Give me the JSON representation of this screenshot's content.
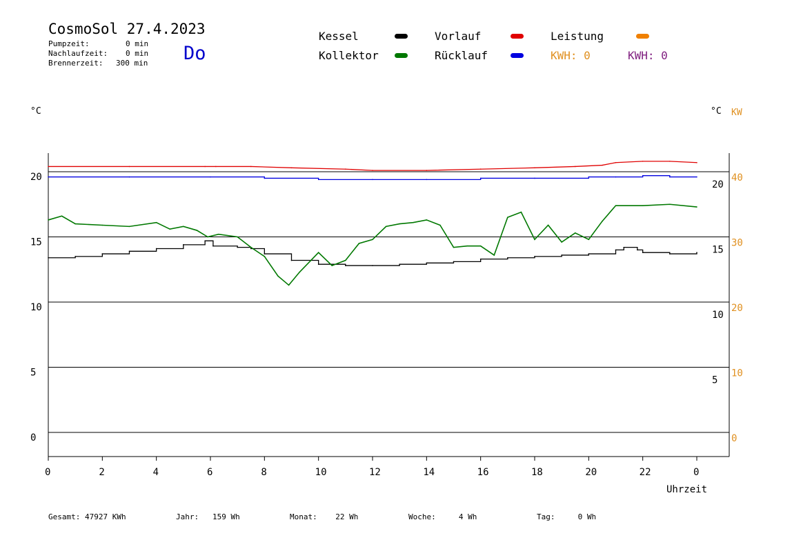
{
  "header": {
    "title": "CosmoSol 27.4.2023",
    "info": [
      {
        "label": "Pumpzeit:",
        "value": "0 min"
      },
      {
        "label": "Nachlaufzeit:",
        "value": "0 min"
      },
      {
        "label": "Brennerzeit:",
        "value": "300 min"
      }
    ],
    "day": "Do"
  },
  "legend": {
    "items": [
      {
        "name": "Kessel",
        "color": "#000000"
      },
      {
        "name": "Vorlauf",
        "color": "#e00000"
      },
      {
        "name": "Leistung",
        "color": "#f08000"
      },
      {
        "name": "Kollektor",
        "color": "#007800"
      },
      {
        "name": "Rücklauf",
        "color": "#0000e0"
      }
    ],
    "kwh1": "KWH: 0",
    "kwh1_color": "#e09020",
    "kwh2": "KWH: 0",
    "kwh2_color": "#802080"
  },
  "units": {
    "left": "°C",
    "right": "°C",
    "right2": "KW"
  },
  "footer": [
    {
      "label": "Gesamt:",
      "value": "47927 KWh"
    },
    {
      "label": "Jahr:",
      "value": "159 Wh"
    },
    {
      "label": "Monat:",
      "value": "22 Wh"
    },
    {
      "label": "Woche:",
      "value": "4 Wh"
    },
    {
      "label": "Tag:",
      "value": "0 Wh"
    }
  ],
  "chart_data": {
    "type": "line",
    "xlabel": "Uhrzeit",
    "x_ticks": [
      "0",
      "2",
      "4",
      "6",
      "8",
      "10",
      "12",
      "14",
      "16",
      "18",
      "20",
      "22",
      "0"
    ],
    "xlim": [
      0,
      24
    ],
    "ylim": [
      0,
      20
    ],
    "y_ticks_left": [
      0,
      5,
      10,
      15,
      20
    ],
    "y_ticks_right": [
      5,
      10,
      15,
      20
    ],
    "y_ticks_kw": [
      0,
      10,
      20,
      30,
      40
    ],
    "kw_color": "#e09020",
    "grid": "horizontal",
    "series": [
      {
        "name": "Vorlauf",
        "color": "#e00000",
        "x": [
          0,
          3,
          5.8,
          6.2,
          7.5,
          9,
          11,
          12,
          14,
          16,
          18,
          19.5,
          20.5,
          21,
          22,
          23,
          24
        ],
        "y": [
          20.4,
          20.4,
          20.4,
          20.4,
          20.4,
          20.3,
          20.2,
          20.1,
          20.1,
          20.2,
          20.3,
          20.4,
          20.5,
          20.7,
          20.8,
          20.8,
          20.7
        ]
      },
      {
        "name": "Rücklauf",
        "color": "#0000e0",
        "x": [
          0,
          3,
          6,
          8,
          10,
          12,
          14,
          16,
          18,
          20,
          21,
          22,
          23,
          24
        ],
        "y": [
          19.6,
          19.6,
          19.6,
          19.5,
          19.4,
          19.4,
          19.4,
          19.5,
          19.5,
          19.6,
          19.6,
          19.7,
          19.6,
          19.6
        ],
        "interpolate": "step"
      },
      {
        "name": "Kessel",
        "color": "#000000",
        "x": [
          0,
          1,
          2,
          3,
          4,
          5,
          5.8,
          6.1,
          7,
          7.5,
          8,
          9,
          10,
          11,
          12,
          13,
          14,
          15,
          16,
          17,
          18,
          19,
          20,
          21,
          21.3,
          21.8,
          22,
          23,
          24
        ],
        "y": [
          13.4,
          13.5,
          13.7,
          13.9,
          14.1,
          14.4,
          14.7,
          14.3,
          14.2,
          14.1,
          13.7,
          13.2,
          12.9,
          12.8,
          12.8,
          12.9,
          13.0,
          13.1,
          13.3,
          13.4,
          13.5,
          13.6,
          13.7,
          14.0,
          14.2,
          14.0,
          13.8,
          13.7,
          13.8
        ],
        "interpolate": "step"
      },
      {
        "name": "Kollektor",
        "color": "#007800",
        "x": [
          0,
          0.5,
          1,
          2,
          3,
          4,
          4.5,
          5,
          5.5,
          5.9,
          6.3,
          7,
          7.5,
          8,
          8.5,
          8.9,
          9.3,
          10,
          10.5,
          11,
          11.5,
          12,
          12.5,
          13,
          13.5,
          14,
          14.5,
          15,
          15.5,
          16,
          16.5,
          17,
          17.5,
          18,
          18.5,
          19,
          19.5,
          20,
          20.5,
          21,
          22,
          23,
          24
        ],
        "y": [
          16.3,
          16.6,
          16.0,
          15.9,
          15.8,
          16.1,
          15.6,
          15.8,
          15.5,
          15.0,
          15.2,
          15.0,
          14.2,
          13.5,
          12.0,
          11.3,
          12.3,
          13.8,
          12.8,
          13.2,
          14.5,
          14.8,
          15.8,
          16.0,
          16.1,
          16.3,
          15.9,
          14.2,
          14.3,
          14.3,
          13.6,
          16.5,
          16.9,
          14.8,
          15.9,
          14.6,
          15.3,
          14.8,
          16.2,
          17.4,
          17.4,
          17.5,
          17.3
        ]
      }
    ]
  }
}
